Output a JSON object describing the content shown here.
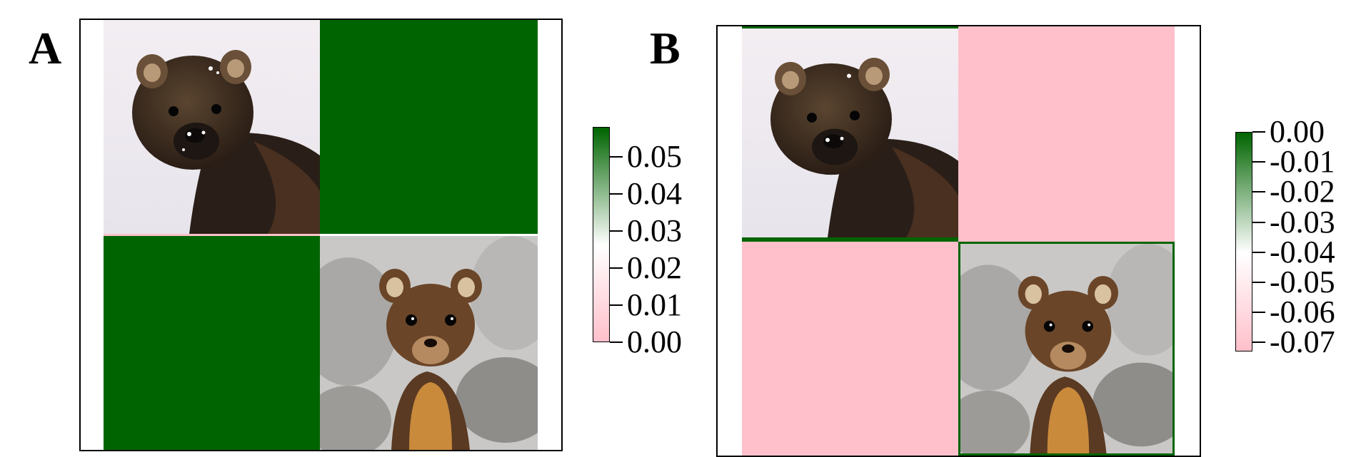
{
  "chart_data": [
    {
      "type": "heatmap",
      "panel_label": "A",
      "rows": 2,
      "cols": 2,
      "cells": [
        {
          "row": 0,
          "col": 0,
          "content": "image",
          "image": "fisher-photo"
        },
        {
          "row": 0,
          "col": 1,
          "value": 0.06
        },
        {
          "row": 1,
          "col": 0,
          "value": 0.06
        },
        {
          "row": 1,
          "col": 1,
          "content": "image",
          "image": "pine-marten-photo"
        }
      ],
      "colorbar": {
        "min": 0.0,
        "max": 0.058,
        "ticks": [
          0.05,
          0.04,
          0.03,
          0.02,
          0.01,
          0.0
        ],
        "tick_labels": [
          "0.05",
          "0.04",
          "0.03",
          "0.02",
          "0.01",
          "0.00"
        ],
        "colors": [
          "#ffc0cb",
          "#ffffff",
          "#006400"
        ]
      }
    },
    {
      "type": "heatmap",
      "panel_label": "B",
      "rows": 2,
      "cols": 2,
      "cells": [
        {
          "row": 0,
          "col": 0,
          "content": "image",
          "image": "fisher-photo"
        },
        {
          "row": 0,
          "col": 1,
          "value": -0.073
        },
        {
          "row": 1,
          "col": 0,
          "value": -0.073
        },
        {
          "row": 1,
          "col": 1,
          "content": "image",
          "image": "pine-marten-photo"
        }
      ],
      "colorbar": {
        "min": -0.073,
        "max": 0.0,
        "ticks": [
          0.0,
          -0.01,
          -0.02,
          -0.03,
          -0.04,
          -0.05,
          -0.06,
          -0.07
        ],
        "tick_labels": [
          "0.00",
          "-0.01",
          "-0.02",
          "-0.03",
          "-0.04",
          "-0.05",
          "-0.06",
          "-0.07"
        ],
        "colors": [
          "#ffc0cb",
          "#ffffff",
          "#006400"
        ]
      }
    }
  ]
}
